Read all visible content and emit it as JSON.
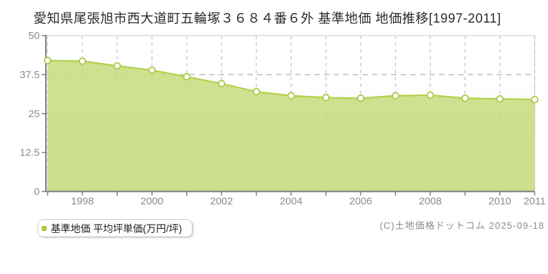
{
  "page": {
    "title": "愛知県尾張旭市西大道町五輪塚３６８４番６外 基準地価 地価推移[1997-2011]"
  },
  "legend": {
    "label": "基準地価 平均坪単価(万円/坪)",
    "marker_color": "#aacb3c"
  },
  "footer": {
    "copyright": "(C)土地価格ドットコム 2025-09-18"
  },
  "chart_data": {
    "type": "area",
    "title": "愛知県尾張旭市西大道町五輪塚３６８４番６外 基準地価 地価推移[1997-2011]",
    "xlabel": "",
    "ylabel": "基準地価 平均坪単価(万円/坪)",
    "x": [
      1997,
      1998,
      1999,
      2000,
      2001,
      2002,
      2003,
      2004,
      2005,
      2006,
      2007,
      2008,
      2009,
      2010,
      2011
    ],
    "series": [
      {
        "name": "基準地価 平均坪単価(万円/坪)",
        "values": [
          42.0,
          41.8,
          40.3,
          38.9,
          36.8,
          34.6,
          32.0,
          30.7,
          30.1,
          29.9,
          30.7,
          30.9,
          29.9,
          29.7,
          29.5
        ]
      }
    ],
    "ylim": [
      0,
      50
    ],
    "yticks": [
      0,
      12.5,
      25,
      37.5,
      50
    ],
    "ytick_labels": [
      "0",
      "12.5",
      "25",
      "37.5",
      "50"
    ],
    "xtick_labels": [
      {
        "index": 1,
        "label": "1998"
      },
      {
        "index": 3,
        "label": "2000"
      },
      {
        "index": 5,
        "label": "2002"
      },
      {
        "index": 7,
        "label": "2004"
      },
      {
        "index": 9,
        "label": "2006"
      },
      {
        "index": 11,
        "label": "2008"
      },
      {
        "index": 13,
        "label": "2010"
      },
      {
        "index": 14,
        "label": "2011"
      }
    ],
    "grid": true,
    "legend_position": "bottom-left",
    "colors": {
      "area_fill": "#c7db7c",
      "area_opacity": 0.85,
      "line": "#b3d14c",
      "point_fill": "#ffffff",
      "point_stroke": "#abc944",
      "grid": "#cccccc",
      "axis": "#7a7a7a",
      "tick_label": "#8c8c8c",
      "plot_bg_top": "#ffffff",
      "plot_bg_bottom": "#ececec",
      "border": "#d9d9d9"
    }
  }
}
